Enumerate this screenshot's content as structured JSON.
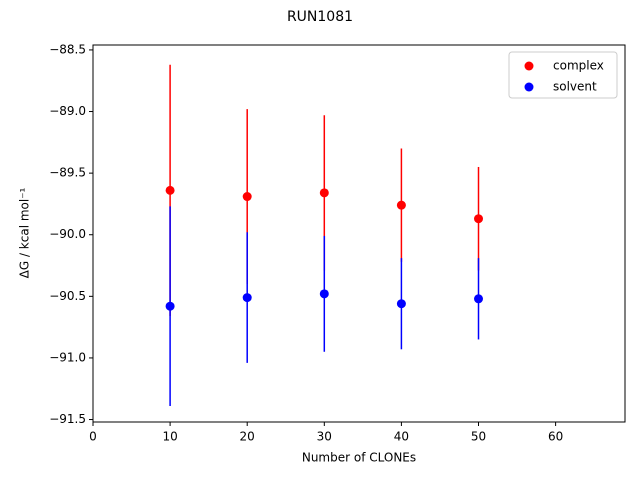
{
  "chart_data": {
    "type": "errorbar",
    "title": "RUN1081",
    "x_label": "Number of CLONEs",
    "y_label": "ΔG / kcal mol⁻¹",
    "x": [
      10,
      20,
      30,
      40,
      50
    ],
    "series": [
      {
        "name": "complex",
        "color": "#ff0000",
        "values": [
          -89.64,
          -89.69,
          -89.66,
          -89.76,
          -89.87
        ],
        "error": [
          1.02,
          0.71,
          0.63,
          0.46,
          0.42
        ]
      },
      {
        "name": "solvent",
        "color": "#0000ff",
        "values": [
          -90.58,
          -90.51,
          -90.48,
          -90.56,
          -90.52
        ],
        "error": [
          0.81,
          0.53,
          0.47,
          0.37,
          0.33
        ]
      }
    ],
    "xlim": [
      0,
      69
    ],
    "xticks": [
      0,
      10,
      20,
      30,
      40,
      50,
      60
    ],
    "ylim": [
      -91.52,
      -88.46
    ],
    "yticks": [
      {
        "value": -91.5,
        "label": "−91.5"
      },
      {
        "value": -91.0,
        "label": "−91.0"
      },
      {
        "value": -90.5,
        "label": "−90.5"
      },
      {
        "value": -90.0,
        "label": "−90.0"
      },
      {
        "value": -89.5,
        "label": "−89.5"
      },
      {
        "value": -89.0,
        "label": "−89.0"
      },
      {
        "value": -88.5,
        "label": "−88.5"
      }
    ],
    "legend": "upper right"
  }
}
